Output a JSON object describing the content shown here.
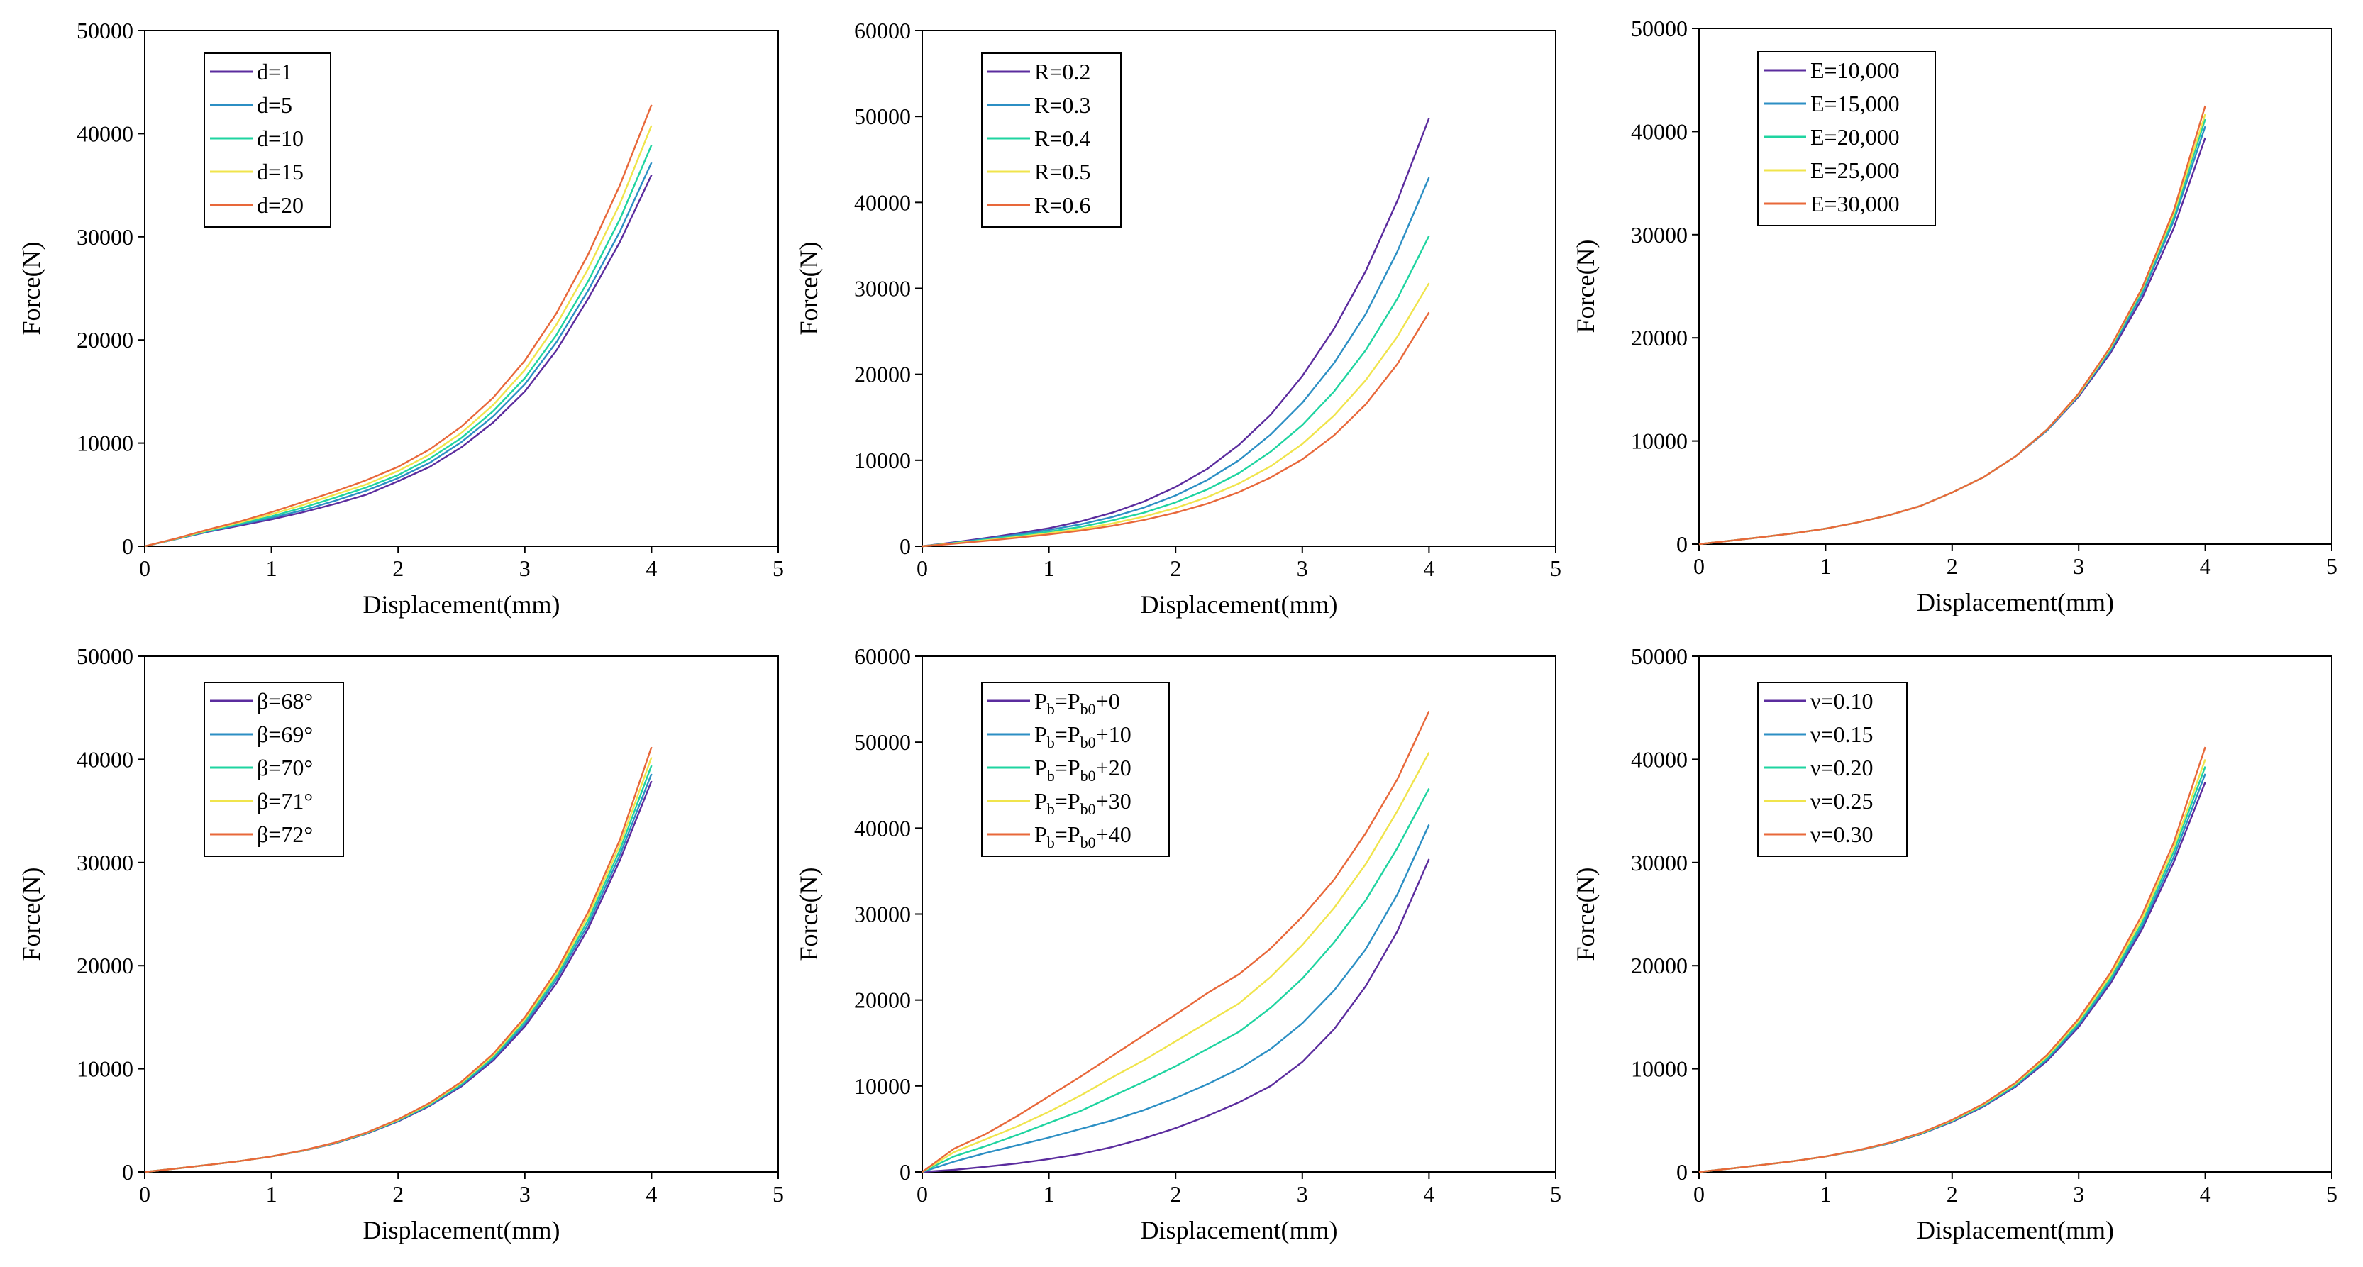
{
  "chart_data": [
    {
      "type": "line",
      "title": "",
      "xlabel": "Displacement(mm)",
      "ylabel": "Force(N)",
      "xlim": [
        0,
        5
      ],
      "ylim": [
        0,
        50000
      ],
      "xticks": [
        "0",
        "1",
        "2",
        "3",
        "4",
        "5"
      ],
      "yticks": [
        "0",
        "10000",
        "20000",
        "30000",
        "40000",
        "50000"
      ],
      "legend_position": "top-left",
      "x": [
        0,
        0.25,
        0.5,
        0.75,
        1.0,
        1.25,
        1.5,
        1.75,
        2.0,
        2.25,
        2.5,
        2.75,
        3.0,
        3.25,
        3.5,
        3.75,
        4.0
      ],
      "series": [
        {
          "name": "d=1",
          "color": "#5b2c9e",
          "values": [
            0,
            700,
            1400,
            2000,
            2600,
            3300,
            4100,
            5000,
            6300,
            7700,
            9600,
            12000,
            15000,
            19000,
            24000,
            29500,
            36000
          ]
        },
        {
          "name": "d=5",
          "color": "#2c8fc4",
          "values": [
            0,
            700,
            1450,
            2100,
            2750,
            3500,
            4400,
            5400,
            6600,
            8100,
            10100,
            12600,
            15700,
            19800,
            24800,
            30500,
            37200
          ]
        },
        {
          "name": "d=10",
          "color": "#1fd4a0",
          "values": [
            0,
            720,
            1500,
            2200,
            2900,
            3750,
            4700,
            5700,
            6900,
            8500,
            10500,
            13100,
            16300,
            20500,
            25700,
            31700,
            38900
          ]
        },
        {
          "name": "d=15",
          "color": "#f0e44c",
          "values": [
            0,
            740,
            1560,
            2300,
            3100,
            4000,
            5000,
            6000,
            7300,
            8900,
            11000,
            13700,
            17100,
            21500,
            26900,
            33200,
            40800
          ]
        },
        {
          "name": "d=20",
          "color": "#e8683a",
          "values": [
            0,
            760,
            1620,
            2400,
            3300,
            4300,
            5300,
            6400,
            7700,
            9400,
            11600,
            14400,
            18000,
            22600,
            28300,
            35000,
            42800
          ]
        }
      ]
    },
    {
      "type": "line",
      "title": "",
      "xlabel": "Displacement(mm)",
      "ylabel": "Force(N)",
      "xlim": [
        0,
        5
      ],
      "ylim": [
        0,
        60000
      ],
      "xticks": [
        "0",
        "1",
        "2",
        "3",
        "4",
        "5"
      ],
      "yticks": [
        "0",
        "10000",
        "20000",
        "30000",
        "40000",
        "50000",
        "60000"
      ],
      "legend_position": "top-left",
      "x": [
        0,
        0.25,
        0.5,
        0.75,
        1.0,
        1.25,
        1.5,
        1.75,
        2.0,
        2.25,
        2.5,
        2.75,
        3.0,
        3.25,
        3.5,
        3.75,
        4.0
      ],
      "series": [
        {
          "name": "R=0.2",
          "color": "#5b2c9e",
          "values": [
            0,
            450,
            950,
            1500,
            2100,
            2900,
            3900,
            5200,
            6900,
            9000,
            11800,
            15300,
            19800,
            25300,
            32000,
            40200,
            49800
          ]
        },
        {
          "name": "R=0.3",
          "color": "#2c8fc4",
          "values": [
            0,
            400,
            850,
            1350,
            1900,
            2550,
            3400,
            4500,
            5900,
            7700,
            10000,
            13000,
            16700,
            21300,
            27000,
            34300,
            42900
          ]
        },
        {
          "name": "R=0.4",
          "color": "#1fd4a0",
          "values": [
            0,
            360,
            760,
            1200,
            1700,
            2250,
            3000,
            3900,
            5100,
            6600,
            8500,
            11000,
            14100,
            18000,
            22800,
            28800,
            36100
          ]
        },
        {
          "name": "R=0.5",
          "color": "#f0e44c",
          "values": [
            0,
            330,
            690,
            1080,
            1520,
            2000,
            2650,
            3450,
            4450,
            5700,
            7300,
            9300,
            11900,
            15200,
            19300,
            24400,
            30600
          ]
        },
        {
          "name": "R=0.6",
          "color": "#e8683a",
          "values": [
            0,
            300,
            630,
            980,
            1380,
            1820,
            2380,
            3050,
            3900,
            4950,
            6300,
            8000,
            10100,
            12900,
            16500,
            21200,
            27200
          ]
        }
      ]
    },
    {
      "type": "line",
      "title": "",
      "xlabel": "Displacement(mm)",
      "ylabel": "Force(N)",
      "xlim": [
        0,
        5
      ],
      "ylim": [
        0,
        50000
      ],
      "xticks": [
        "0",
        "1",
        "2",
        "3",
        "4",
        "5"
      ],
      "yticks": [
        "0",
        "10000",
        "20000",
        "30000",
        "40000",
        "50000"
      ],
      "legend_position": "top-left",
      "x": [
        0,
        0.25,
        0.5,
        0.75,
        1.0,
        1.25,
        1.5,
        1.75,
        2.0,
        2.25,
        2.5,
        2.75,
        3.0,
        3.25,
        3.5,
        3.75,
        4.0
      ],
      "series": [
        {
          "name": "E=10,000",
          "color": "#5b2c9e",
          "values": [
            0,
            330,
            680,
            1050,
            1500,
            2100,
            2800,
            3700,
            5000,
            6500,
            8500,
            11000,
            14300,
            18500,
            23800,
            30600,
            39400
          ]
        },
        {
          "name": "E=15,000",
          "color": "#2c8fc4",
          "values": [
            0,
            330,
            680,
            1050,
            1500,
            2100,
            2800,
            3700,
            5000,
            6500,
            8500,
            11000,
            14400,
            18700,
            24200,
            31300,
            40500
          ]
        },
        {
          "name": "E=20,000",
          "color": "#1fd4a0",
          "values": [
            0,
            330,
            680,
            1050,
            1500,
            2100,
            2800,
            3700,
            5000,
            6500,
            8500,
            11100,
            14500,
            18900,
            24500,
            31700,
            41200
          ]
        },
        {
          "name": "E=25,000",
          "color": "#f0e44c",
          "values": [
            0,
            330,
            680,
            1050,
            1500,
            2100,
            2800,
            3700,
            5000,
            6500,
            8500,
            11100,
            14500,
            19000,
            24700,
            32000,
            41700
          ]
        },
        {
          "name": "E=30,000",
          "color": "#e8683a",
          "values": [
            0,
            330,
            680,
            1050,
            1500,
            2100,
            2800,
            3700,
            5000,
            6500,
            8500,
            11100,
            14600,
            19100,
            24800,
            32300,
            42500
          ]
        }
      ]
    },
    {
      "type": "line",
      "title": "",
      "xlabel": "Displacement(mm)",
      "ylabel": "Force(N)",
      "xlim": [
        0,
        5
      ],
      "ylim": [
        0,
        50000
      ],
      "xticks": [
        "0",
        "1",
        "2",
        "3",
        "4",
        "5"
      ],
      "yticks": [
        "0",
        "10000",
        "20000",
        "30000",
        "40000",
        "50000"
      ],
      "legend_position": "top-left",
      "x": [
        0,
        0.25,
        0.5,
        0.75,
        1.0,
        1.25,
        1.5,
        1.75,
        2.0,
        2.25,
        2.5,
        2.75,
        3.0,
        3.25,
        3.5,
        3.75,
        4.0
      ],
      "series": [
        {
          "name": "β=68°",
          "color": "#5b2c9e",
          "values": [
            0,
            330,
            680,
            1050,
            1500,
            2050,
            2750,
            3700,
            4900,
            6400,
            8300,
            10800,
            14100,
            18300,
            23600,
            30200,
            37900
          ]
        },
        {
          "name": "β=69°",
          "color": "#2c8fc4",
          "values": [
            0,
            330,
            680,
            1050,
            1500,
            2060,
            2780,
            3730,
            4950,
            6480,
            8420,
            10980,
            14350,
            18650,
            24000,
            30700,
            38600
          ]
        },
        {
          "name": "β=70°",
          "color": "#1fd4a0",
          "values": [
            0,
            330,
            680,
            1050,
            1500,
            2070,
            2800,
            3760,
            5000,
            6550,
            8550,
            11150,
            14600,
            18950,
            24400,
            31200,
            39400
          ]
        },
        {
          "name": "β=71°",
          "color": "#f0e44c",
          "values": [
            0,
            330,
            680,
            1050,
            1500,
            2080,
            2820,
            3790,
            5050,
            6620,
            8650,
            11300,
            14800,
            19200,
            24800,
            31700,
            40200
          ]
        },
        {
          "name": "β=72°",
          "color": "#e8683a",
          "values": [
            0,
            330,
            680,
            1050,
            1500,
            2090,
            2840,
            3820,
            5100,
            6700,
            8750,
            11450,
            15000,
            19500,
            25200,
            32200,
            41200
          ]
        }
      ]
    },
    {
      "type": "line",
      "title": "",
      "xlabel": "Displacement(mm)",
      "ylabel": "Force(N)",
      "xlim": [
        0,
        5
      ],
      "ylim": [
        0,
        60000
      ],
      "xticks": [
        "0",
        "1",
        "2",
        "3",
        "4",
        "5"
      ],
      "yticks": [
        "0",
        "10000",
        "20000",
        "30000",
        "40000",
        "50000",
        "60000"
      ],
      "legend_position": "top-left",
      "x": [
        0,
        0.25,
        0.5,
        0.75,
        1.0,
        1.25,
        1.5,
        1.75,
        2.0,
        2.25,
        2.5,
        2.75,
        3.0,
        3.25,
        3.5,
        3.75,
        4.0
      ],
      "series": [
        {
          "name": "Pb=Pb0+0",
          "label_main": "P",
          "label_sub1": "b",
          "label_mid": "=P",
          "label_sub2": "b0",
          "label_tail": "+0",
          "color": "#5b2c9e",
          "values": [
            0,
            250,
            600,
            1000,
            1500,
            2100,
            2900,
            3900,
            5100,
            6500,
            8100,
            10000,
            12800,
            16600,
            21600,
            28000,
            36400
          ]
        },
        {
          "name": "Pb=Pb0+10",
          "label_main": "P",
          "label_sub1": "b",
          "label_mid": "=P",
          "label_sub2": "b0",
          "label_tail": "+10",
          "color": "#2c8fc4",
          "values": [
            0,
            1200,
            2200,
            3100,
            4000,
            5000,
            6000,
            7200,
            8600,
            10200,
            12000,
            14300,
            17300,
            21100,
            25900,
            32300,
            40400
          ]
        },
        {
          "name": "Pb=Pb0+20",
          "label_main": "P",
          "label_sub1": "b",
          "label_mid": "=P",
          "label_sub2": "b0",
          "label_tail": "+20",
          "color": "#1fd4a0",
          "values": [
            0,
            1800,
            3000,
            4300,
            5700,
            7100,
            8800,
            10500,
            12300,
            14300,
            16300,
            19100,
            22500,
            26700,
            31600,
            37700,
            44600
          ]
        },
        {
          "name": "Pb=Pb0+30",
          "label_main": "P",
          "label_sub1": "b",
          "label_mid": "=P",
          "label_sub2": "b0",
          "label_tail": "+30",
          "color": "#f0e44c",
          "values": [
            0,
            2300,
            3800,
            5300,
            7000,
            8900,
            11000,
            13000,
            15200,
            17400,
            19600,
            22700,
            26400,
            30700,
            35800,
            42000,
            48800
          ]
        },
        {
          "name": "Pb=Pb0+40",
          "label_main": "P",
          "label_sub1": "b",
          "label_mid": "=P",
          "label_sub2": "b0",
          "label_tail": "+40",
          "color": "#e8683a",
          "values": [
            0,
            2700,
            4400,
            6500,
            8800,
            11100,
            13500,
            15900,
            18300,
            20800,
            23000,
            26000,
            29700,
            34000,
            39400,
            45700,
            53600
          ]
        }
      ]
    },
    {
      "type": "line",
      "title": "",
      "xlabel": "Displacement(mm)",
      "ylabel": "Force(N)",
      "xlim": [
        0,
        5
      ],
      "ylim": [
        0,
        50000
      ],
      "xticks": [
        "0",
        "1",
        "2",
        "3",
        "4",
        "5"
      ],
      "yticks": [
        "0",
        "10000",
        "20000",
        "30000",
        "40000",
        "50000"
      ],
      "legend_position": "top-left",
      "x": [
        0,
        0.25,
        0.5,
        0.75,
        1.0,
        1.25,
        1.5,
        1.75,
        2.0,
        2.25,
        2.5,
        2.75,
        3.0,
        3.25,
        3.5,
        3.75,
        4.0
      ],
      "series": [
        {
          "name": "ν=0.10",
          "color": "#5b2c9e",
          "values": [
            0,
            330,
            680,
            1050,
            1500,
            2050,
            2750,
            3650,
            4850,
            6350,
            8250,
            10750,
            14050,
            18250,
            23500,
            30000,
            37800
          ]
        },
        {
          "name": "ν=0.15",
          "color": "#2c8fc4",
          "values": [
            0,
            330,
            680,
            1050,
            1500,
            2060,
            2770,
            3680,
            4900,
            6420,
            8350,
            10900,
            14250,
            18500,
            23800,
            30500,
            38600
          ]
        },
        {
          "name": "ν=0.20",
          "color": "#1fd4a0",
          "values": [
            0,
            330,
            680,
            1050,
            1500,
            2070,
            2790,
            3710,
            4950,
            6490,
            8450,
            11050,
            14450,
            18750,
            24150,
            31000,
            39300
          ]
        },
        {
          "name": "ν=0.25",
          "color": "#f0e44c",
          "values": [
            0,
            330,
            680,
            1050,
            1500,
            2080,
            2810,
            3740,
            5000,
            6560,
            8550,
            11200,
            14650,
            19000,
            24500,
            31400,
            40000
          ]
        },
        {
          "name": "ν=0.30",
          "color": "#e8683a",
          "values": [
            0,
            330,
            680,
            1050,
            1500,
            2090,
            2830,
            3770,
            5050,
            6630,
            8650,
            11350,
            14850,
            19300,
            24900,
            31900,
            41200
          ]
        }
      ]
    }
  ]
}
